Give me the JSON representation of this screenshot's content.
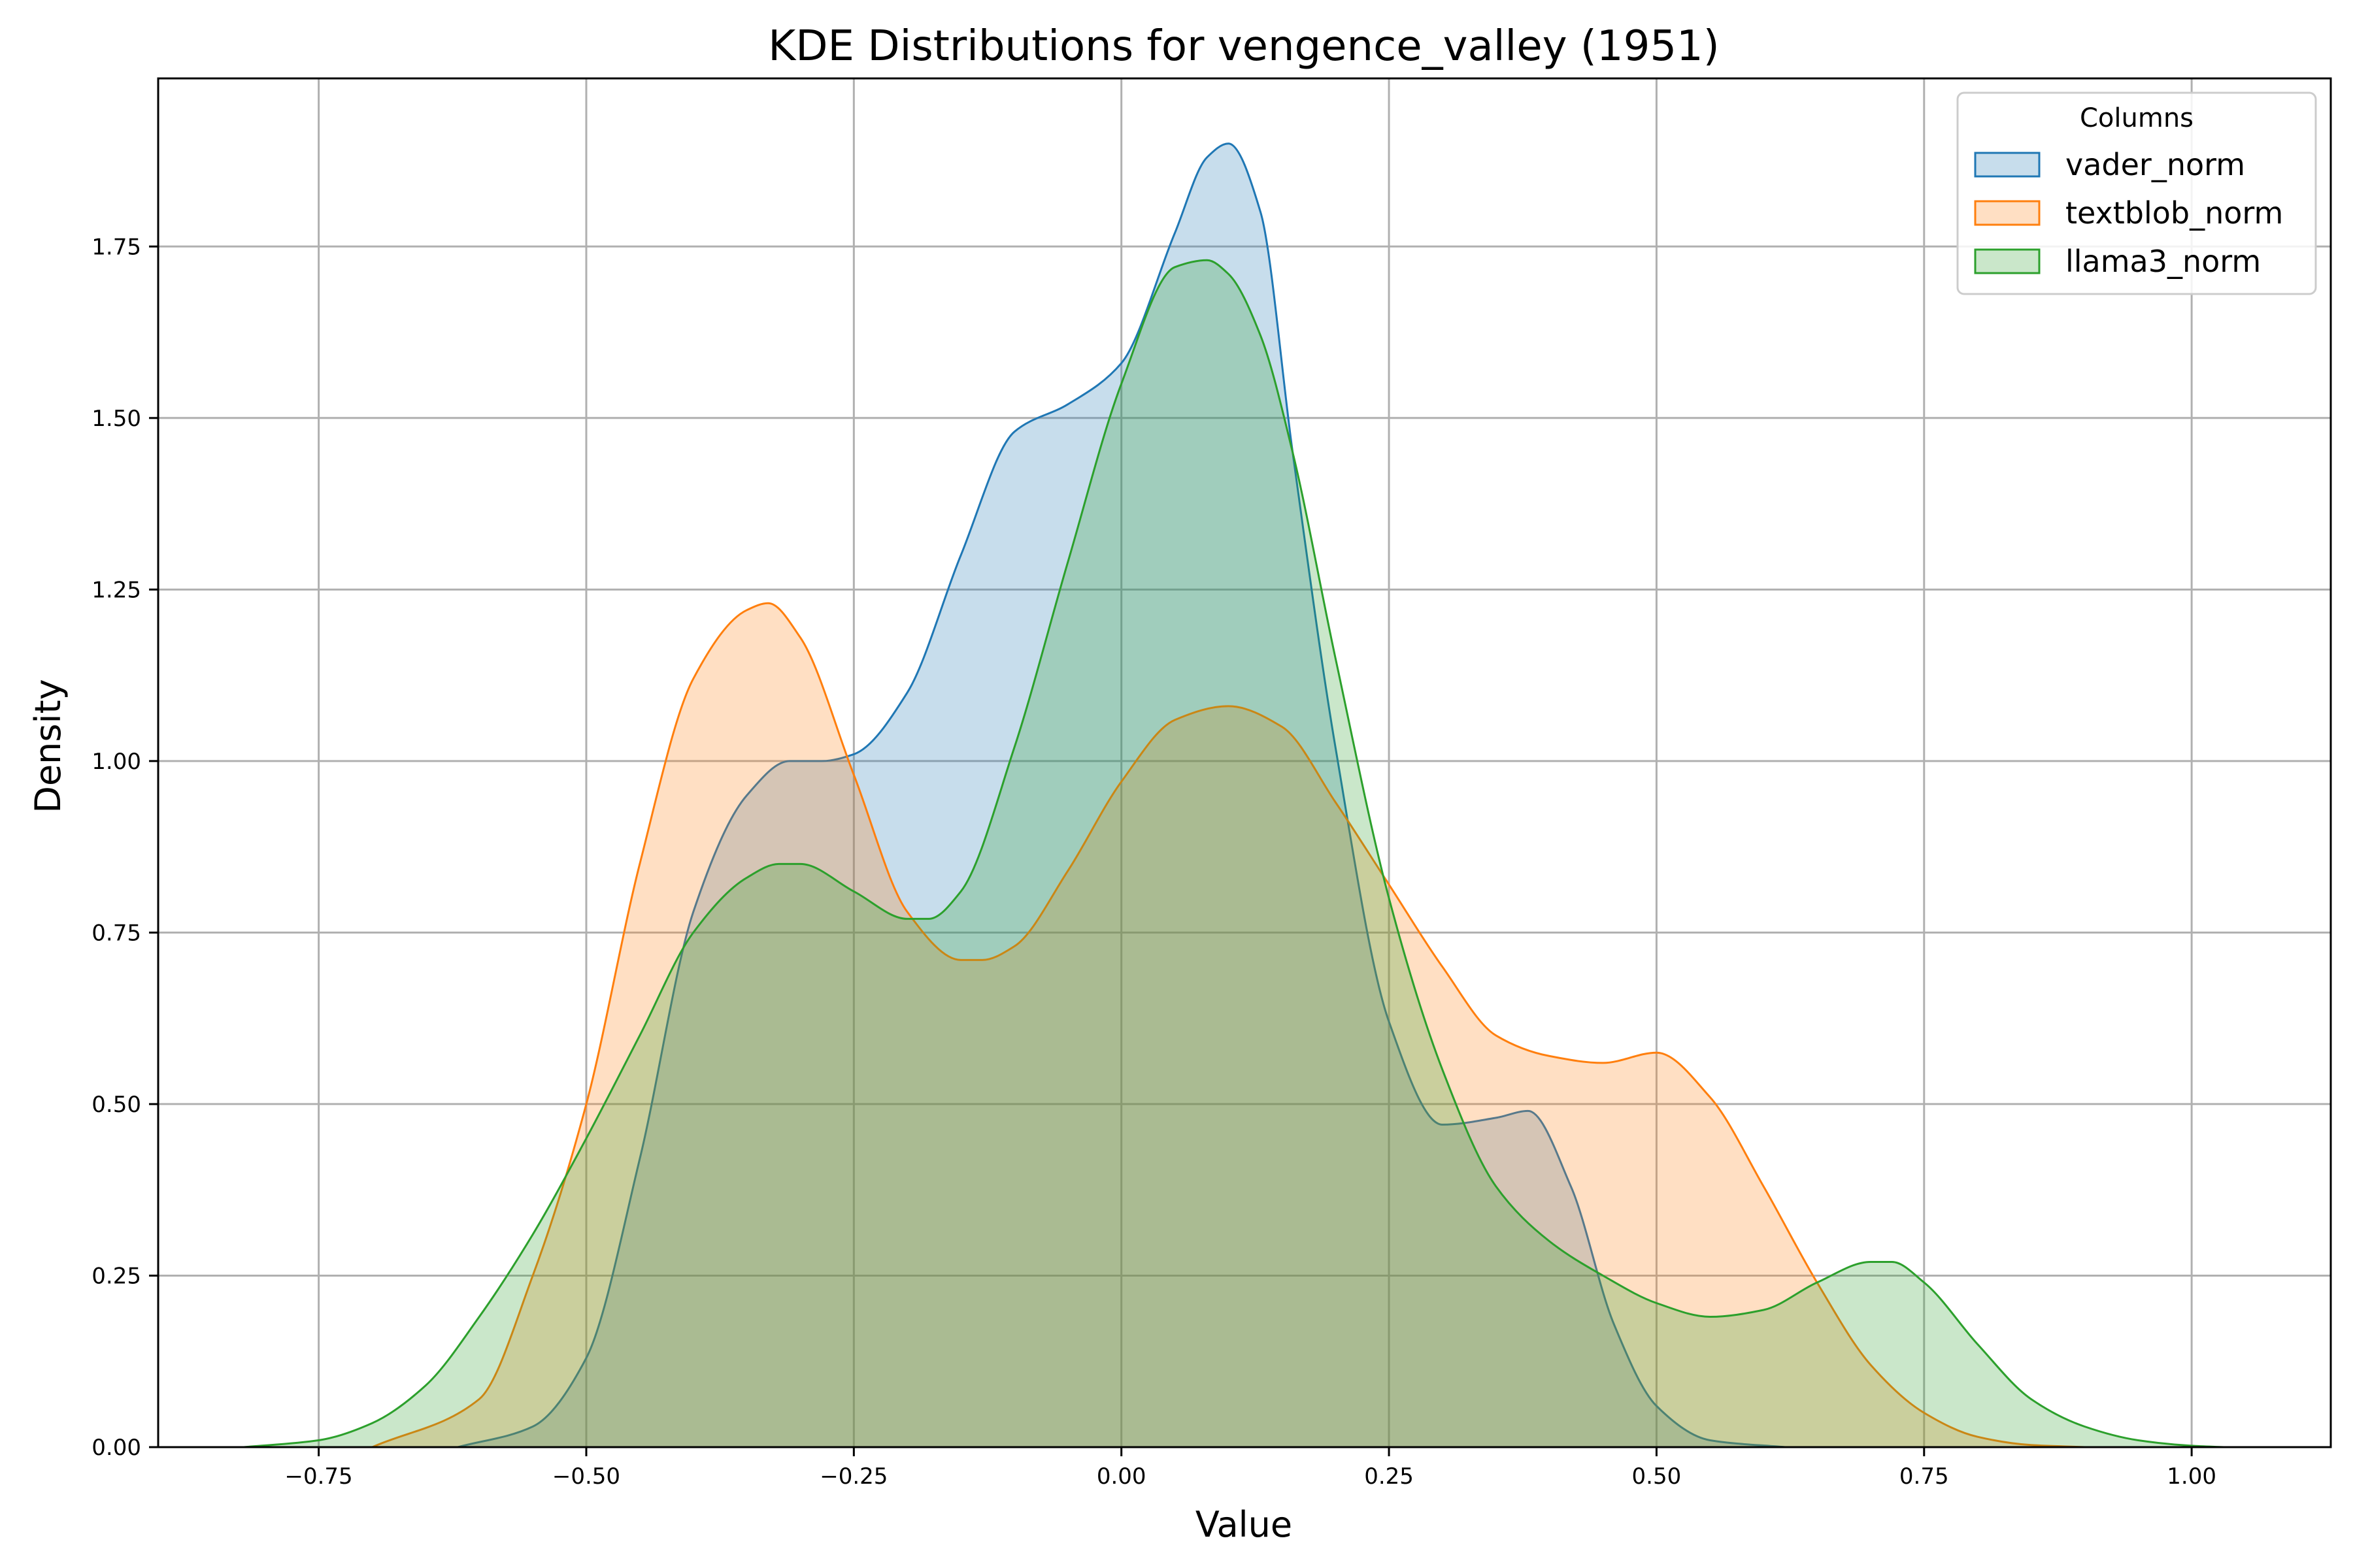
{
  "chart_data": {
    "type": "area",
    "title": "KDE Distributions for vengence_valley (1951)",
    "xlabel": "Value",
    "ylabel": "Density",
    "xlim": [
      -0.9,
      1.13
    ],
    "ylim": [
      0,
      1.995
    ],
    "xticks": [
      -0.75,
      -0.5,
      -0.25,
      0.0,
      0.25,
      0.5,
      0.75,
      1.0
    ],
    "xtick_labels": [
      "−0.75",
      "−0.50",
      "−0.25",
      "0.00",
      "0.25",
      "0.50",
      "0.75",
      "1.00"
    ],
    "yticks": [
      0,
      0.25,
      0.5,
      0.75,
      1.0,
      1.25,
      1.5,
      1.75
    ],
    "ytick_labels": [
      "0.00",
      "0.25",
      "0.50",
      "0.75",
      "1.00",
      "1.25",
      "1.50",
      "1.75"
    ],
    "grid": true,
    "legend": {
      "title": "Columns",
      "position": "top-right"
    },
    "series": [
      {
        "name": "vader_norm",
        "color": "#1f77b4",
        "x": [
          -0.62,
          -0.55,
          -0.5,
          -0.45,
          -0.4,
          -0.35,
          -0.31,
          -0.28,
          -0.25,
          -0.2,
          -0.15,
          -0.1,
          -0.05,
          0.0,
          0.05,
          0.08,
          0.1,
          0.13,
          0.16,
          0.2,
          0.25,
          0.3,
          0.35,
          0.38,
          0.42,
          0.46,
          0.5,
          0.55,
          0.62
        ],
        "y": [
          0.0,
          0.03,
          0.13,
          0.42,
          0.78,
          0.95,
          1.0,
          1.0,
          1.01,
          1.1,
          1.3,
          1.48,
          1.52,
          1.58,
          1.77,
          1.88,
          1.9,
          1.8,
          1.45,
          1.02,
          0.62,
          0.47,
          0.48,
          0.49,
          0.38,
          0.18,
          0.06,
          0.01,
          0.0
        ]
      },
      {
        "name": "textblob_norm",
        "color": "#ff7f0e",
        "x": [
          -0.7,
          -0.6,
          -0.55,
          -0.5,
          -0.45,
          -0.4,
          -0.35,
          -0.33,
          -0.3,
          -0.25,
          -0.2,
          -0.15,
          -0.13,
          -0.1,
          -0.05,
          0.0,
          0.05,
          0.1,
          0.15,
          0.2,
          0.25,
          0.3,
          0.35,
          0.4,
          0.45,
          0.5,
          0.55,
          0.6,
          0.65,
          0.7,
          0.75,
          0.8,
          0.85,
          0.9
        ],
        "y": [
          0.0,
          0.07,
          0.25,
          0.5,
          0.85,
          1.12,
          1.22,
          1.23,
          1.18,
          0.98,
          0.78,
          0.71,
          0.71,
          0.73,
          0.84,
          0.97,
          1.06,
          1.08,
          1.05,
          0.94,
          0.82,
          0.7,
          0.6,
          0.57,
          0.56,
          0.575,
          0.51,
          0.38,
          0.24,
          0.12,
          0.05,
          0.015,
          0.003,
          0.0
        ]
      },
      {
        "name": "llama3_norm",
        "color": "#2ca02c",
        "x": [
          -0.82,
          -0.75,
          -0.7,
          -0.65,
          -0.6,
          -0.55,
          -0.5,
          -0.45,
          -0.4,
          -0.35,
          -0.32,
          -0.3,
          -0.25,
          -0.2,
          -0.18,
          -0.15,
          -0.1,
          -0.05,
          0.0,
          0.05,
          0.08,
          0.1,
          0.13,
          0.16,
          0.2,
          0.25,
          0.3,
          0.35,
          0.4,
          0.45,
          0.5,
          0.55,
          0.6,
          0.65,
          0.7,
          0.72,
          0.75,
          0.8,
          0.85,
          0.9,
          0.95,
          1.0,
          1.03
        ],
        "y": [
          0.0,
          0.01,
          0.035,
          0.09,
          0.19,
          0.31,
          0.45,
          0.6,
          0.75,
          0.83,
          0.85,
          0.85,
          0.81,
          0.77,
          0.77,
          0.81,
          1.02,
          1.29,
          1.55,
          1.72,
          1.73,
          1.71,
          1.62,
          1.45,
          1.15,
          0.8,
          0.55,
          0.38,
          0.3,
          0.25,
          0.21,
          0.19,
          0.2,
          0.24,
          0.27,
          0.27,
          0.24,
          0.15,
          0.07,
          0.03,
          0.01,
          0.002,
          0.0
        ]
      }
    ]
  }
}
